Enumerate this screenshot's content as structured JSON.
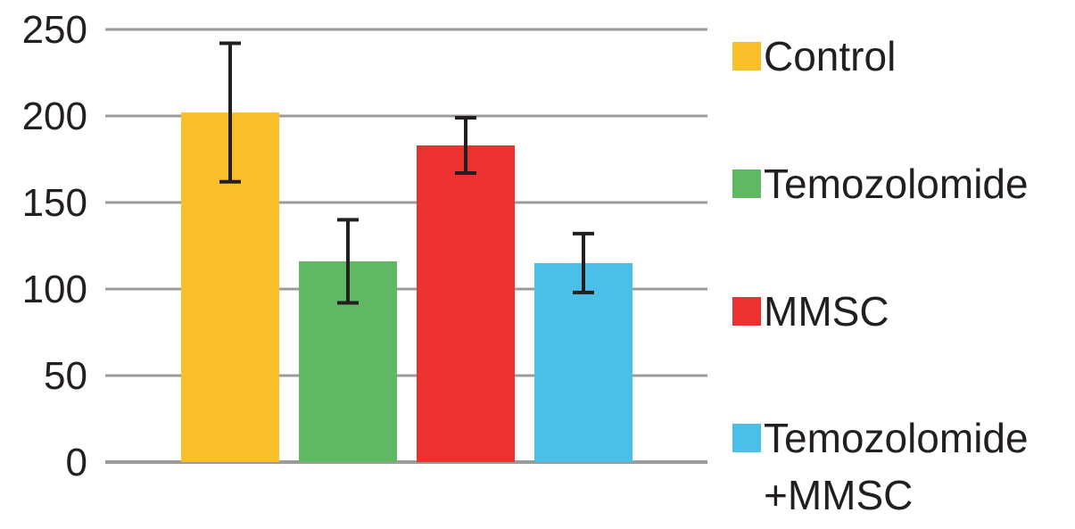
{
  "chart_data": {
    "type": "bar",
    "title": "",
    "xlabel": "",
    "ylabel": "",
    "ylim": [
      0,
      250
    ],
    "yticks": [
      "0",
      "50",
      "100",
      "150",
      "200",
      "250"
    ],
    "grid": true,
    "legend_position": "right",
    "series": [
      {
        "name": "Control",
        "value": 202,
        "error_low": 162,
        "error_high": 242,
        "color": "#f9bf2a"
      },
      {
        "name": "Temozolomide",
        "value": 116,
        "error_low": 92,
        "error_high": 140,
        "color": "#61b862"
      },
      {
        "name": "MMSC",
        "value": 183,
        "error_low": 167,
        "error_high": 199,
        "color": "#ec3131"
      },
      {
        "name": "Temozolomide\n+MMSC",
        "value": 115,
        "error_low": 98,
        "error_high": 132,
        "color": "#4bbfe8"
      }
    ]
  }
}
